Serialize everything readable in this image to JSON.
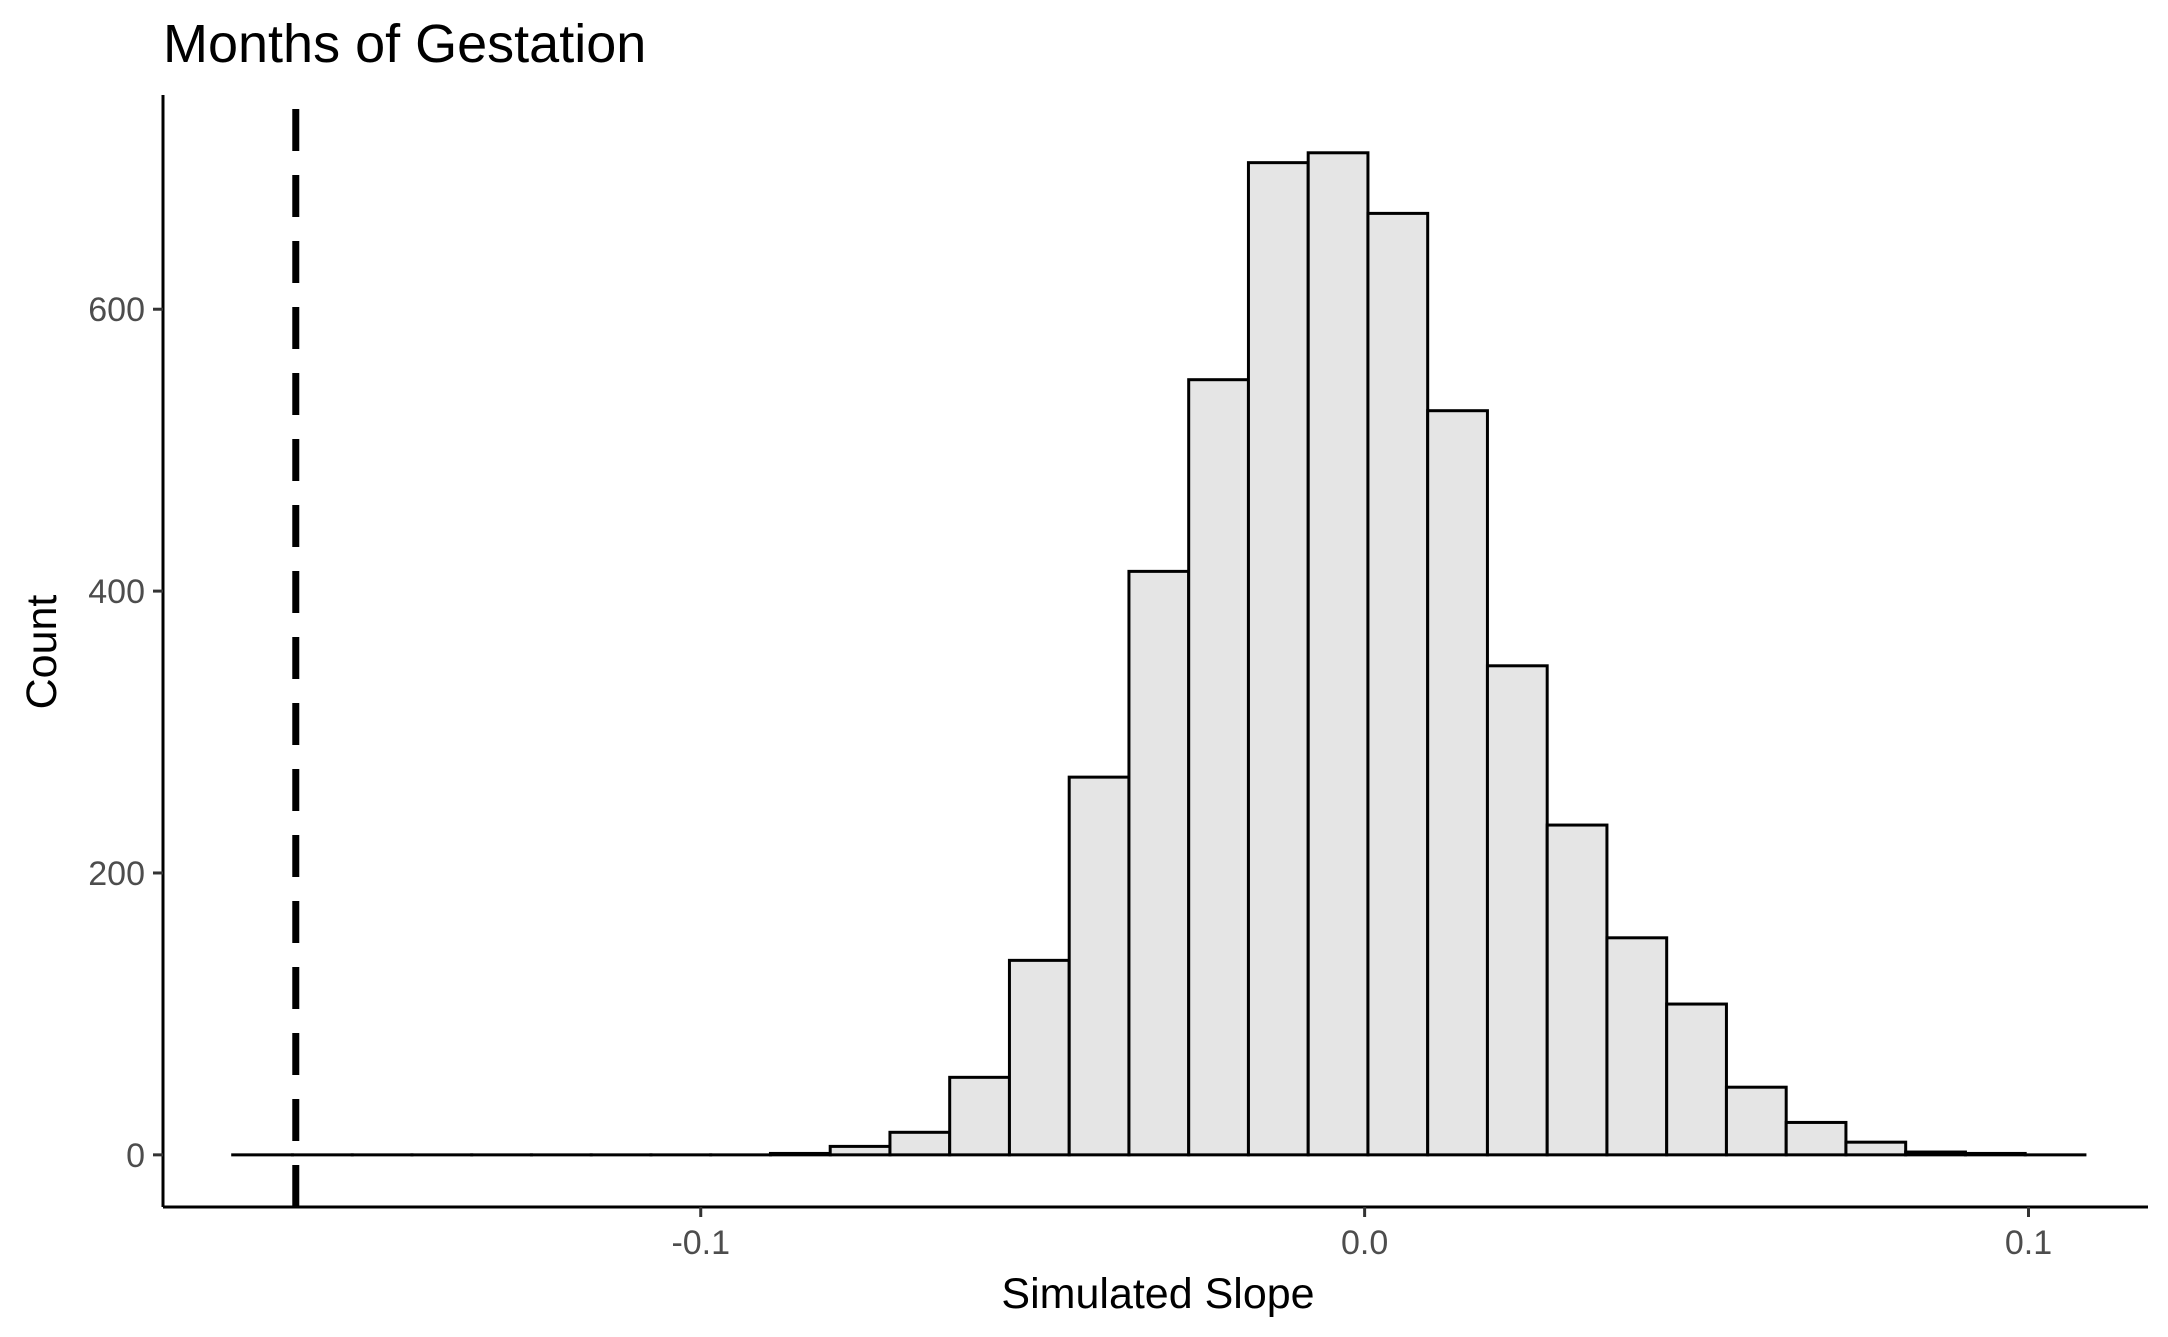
{
  "chart_data": {
    "type": "bar",
    "title": "Months of Gestation",
    "xlabel": "Simulated Slope",
    "ylabel": "Count",
    "xlim": [
      -0.181,
      0.118
    ],
    "ylim": [
      -37,
      752
    ],
    "x_ticks": [
      -0.1,
      0.0,
      0.1
    ],
    "x_tick_labels": [
      "-0.1",
      "0.0",
      "0.1"
    ],
    "y_ticks": [
      0,
      200,
      400,
      600
    ],
    "y_tick_labels": [
      "0",
      "200",
      "400",
      "600"
    ],
    "bin_width": 0.009,
    "bin_centers": [
      -0.166,
      -0.157,
      -0.148,
      -0.139,
      -0.13,
      -0.121,
      -0.112,
      -0.103,
      -0.094,
      -0.085,
      -0.076,
      -0.067,
      -0.058,
      -0.049,
      -0.04,
      -0.031,
      -0.022,
      -0.013,
      -0.004,
      0.005,
      0.014,
      0.023,
      0.032,
      0.041,
      0.05,
      0.059,
      0.068,
      0.077,
      0.086,
      0.095,
      0.104
    ],
    "values": [
      0,
      0,
      0,
      0,
      0,
      0,
      0,
      0,
      0,
      1,
      6,
      16,
      55,
      138,
      268,
      414,
      550,
      704,
      711,
      668,
      528,
      347,
      234,
      154,
      107,
      48,
      23,
      9,
      2,
      1,
      0
    ],
    "reference_line": {
      "x": -0.161,
      "style": "dashed"
    },
    "grid": false,
    "legend": "none"
  }
}
